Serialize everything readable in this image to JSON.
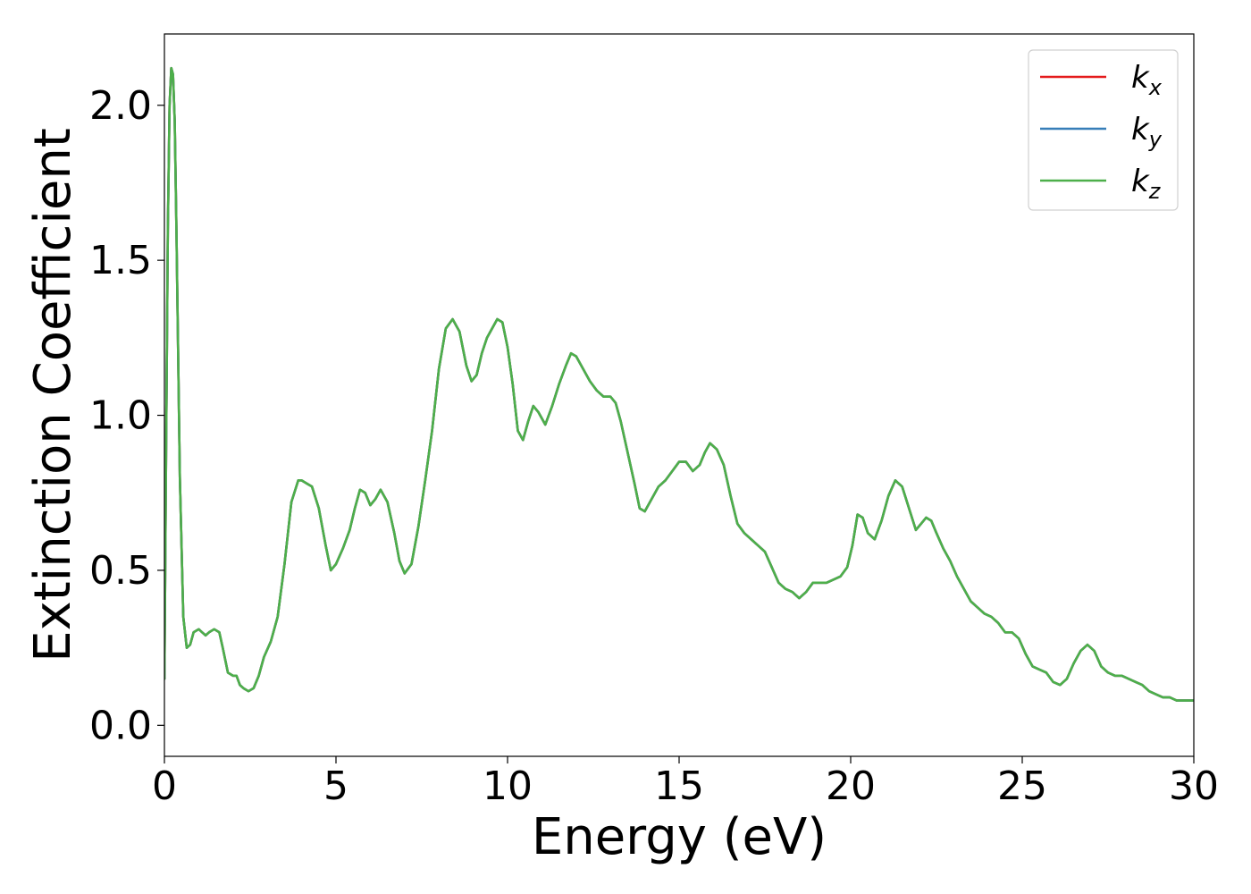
{
  "chart_data": {
    "type": "line",
    "xlabel": "Energy (eV)",
    "ylabel": "Extinction Coefficient",
    "xlim": [
      0,
      30
    ],
    "ylim": [
      -0.1,
      2.23
    ],
    "xticks": [
      0,
      5,
      10,
      15,
      20,
      25,
      30
    ],
    "yticks": [
      0.0,
      0.5,
      1.0,
      1.5,
      2.0
    ],
    "xtick_labels": [
      "0",
      "5",
      "10",
      "15",
      "20",
      "25",
      "30"
    ],
    "ytick_labels": [
      "0.0",
      "0.5",
      "1.0",
      "1.5",
      "2.0"
    ],
    "grid": false,
    "legend_position": "top-right",
    "series": [
      {
        "name": "k_x",
        "label_main": "k",
        "label_sub": "x",
        "color": "#e41a1c",
        "x": [
          0.0,
          0.05,
          0.1,
          0.15,
          0.2,
          0.25,
          0.3,
          0.35,
          0.45,
          0.55,
          0.65,
          0.75,
          0.85,
          1.0,
          1.1,
          1.2,
          1.3,
          1.45,
          1.6,
          1.7,
          1.85,
          2.0,
          2.1,
          2.2,
          2.3,
          2.45,
          2.6,
          2.75,
          2.9,
          3.1,
          3.3,
          3.5,
          3.7,
          3.9,
          4.0,
          4.15,
          4.3,
          4.5,
          4.7,
          4.85,
          5.0,
          5.2,
          5.4,
          5.55,
          5.7,
          5.85,
          6.0,
          6.15,
          6.3,
          6.5,
          6.7,
          6.85,
          7.0,
          7.2,
          7.4,
          7.6,
          7.8,
          8.0,
          8.2,
          8.4,
          8.6,
          8.8,
          8.95,
          9.1,
          9.25,
          9.4,
          9.55,
          9.7,
          9.85,
          10.0,
          10.15,
          10.3,
          10.45,
          10.6,
          10.75,
          10.9,
          11.1,
          11.3,
          11.5,
          11.7,
          11.85,
          12.0,
          12.2,
          12.4,
          12.6,
          12.8,
          13.0,
          13.15,
          13.3,
          13.5,
          13.7,
          13.85,
          14.0,
          14.2,
          14.4,
          14.6,
          14.8,
          15.0,
          15.2,
          15.4,
          15.6,
          15.75,
          15.9,
          16.1,
          16.3,
          16.5,
          16.7,
          16.9,
          17.1,
          17.3,
          17.5,
          17.7,
          17.9,
          18.1,
          18.3,
          18.5,
          18.7,
          18.9,
          19.1,
          19.3,
          19.5,
          19.7,
          19.9,
          20.05,
          20.2,
          20.35,
          20.5,
          20.7,
          20.9,
          21.1,
          21.3,
          21.5,
          21.7,
          21.9,
          22.05,
          22.2,
          22.35,
          22.5,
          22.7,
          22.9,
          23.1,
          23.3,
          23.5,
          23.7,
          23.9,
          24.1,
          24.3,
          24.5,
          24.7,
          24.9,
          25.1,
          25.3,
          25.5,
          25.7,
          25.9,
          26.1,
          26.3,
          26.5,
          26.7,
          26.9,
          27.1,
          27.3,
          27.5,
          27.7,
          27.9,
          28.1,
          28.3,
          28.5,
          28.7,
          28.9,
          29.1,
          29.3,
          29.5,
          29.7,
          30.0
        ],
        "y": [
          0.15,
          0.9,
          1.6,
          2.0,
          2.12,
          2.1,
          1.95,
          1.6,
          0.8,
          0.35,
          0.25,
          0.26,
          0.3,
          0.31,
          0.3,
          0.29,
          0.3,
          0.31,
          0.3,
          0.25,
          0.17,
          0.16,
          0.16,
          0.13,
          0.12,
          0.11,
          0.12,
          0.16,
          0.22,
          0.27,
          0.35,
          0.52,
          0.72,
          0.79,
          0.79,
          0.78,
          0.77,
          0.7,
          0.58,
          0.5,
          0.52,
          0.57,
          0.63,
          0.7,
          0.76,
          0.75,
          0.71,
          0.73,
          0.76,
          0.72,
          0.62,
          0.53,
          0.49,
          0.52,
          0.64,
          0.79,
          0.95,
          1.15,
          1.28,
          1.31,
          1.27,
          1.16,
          1.11,
          1.13,
          1.2,
          1.25,
          1.28,
          1.31,
          1.3,
          1.22,
          1.1,
          0.95,
          0.92,
          0.98,
          1.03,
          1.01,
          0.97,
          1.03,
          1.1,
          1.16,
          1.2,
          1.19,
          1.15,
          1.11,
          1.08,
          1.06,
          1.06,
          1.04,
          0.98,
          0.88,
          0.78,
          0.7,
          0.69,
          0.73,
          0.77,
          0.79,
          0.82,
          0.85,
          0.85,
          0.82,
          0.84,
          0.88,
          0.91,
          0.89,
          0.84,
          0.74,
          0.65,
          0.62,
          0.6,
          0.58,
          0.56,
          0.51,
          0.46,
          0.44,
          0.43,
          0.41,
          0.43,
          0.46,
          0.46,
          0.46,
          0.47,
          0.48,
          0.51,
          0.58,
          0.68,
          0.67,
          0.62,
          0.6,
          0.66,
          0.74,
          0.79,
          0.77,
          0.7,
          0.63,
          0.65,
          0.67,
          0.66,
          0.62,
          0.57,
          0.53,
          0.48,
          0.44,
          0.4,
          0.38,
          0.36,
          0.35,
          0.33,
          0.3,
          0.3,
          0.28,
          0.23,
          0.19,
          0.18,
          0.17,
          0.14,
          0.13,
          0.15,
          0.2,
          0.24,
          0.26,
          0.24,
          0.19,
          0.17,
          0.16,
          0.16,
          0.15,
          0.14,
          0.13,
          0.11,
          0.1,
          0.09,
          0.09,
          0.08,
          0.08,
          0.08
        ]
      },
      {
        "name": "k_y",
        "label_main": "k",
        "label_sub": "y",
        "color": "#377eb8",
        "x": [
          0.0,
          0.05,
          0.1,
          0.15,
          0.2,
          0.25,
          0.3,
          0.35,
          0.45,
          0.55,
          0.65,
          0.75,
          0.85,
          1.0,
          1.1,
          1.2,
          1.3,
          1.45,
          1.6,
          1.7,
          1.85,
          2.0,
          2.1,
          2.2,
          2.3,
          2.45,
          2.6,
          2.75,
          2.9,
          3.1,
          3.3,
          3.5,
          3.7,
          3.9,
          4.0,
          4.15,
          4.3,
          4.5,
          4.7,
          4.85,
          5.0,
          5.2,
          5.4,
          5.55,
          5.7,
          5.85,
          6.0,
          6.15,
          6.3,
          6.5,
          6.7,
          6.85,
          7.0,
          7.2,
          7.4,
          7.6,
          7.8,
          8.0,
          8.2,
          8.4,
          8.6,
          8.8,
          8.95,
          9.1,
          9.25,
          9.4,
          9.55,
          9.7,
          9.85,
          10.0,
          10.15,
          10.3,
          10.45,
          10.6,
          10.75,
          10.9,
          11.1,
          11.3,
          11.5,
          11.7,
          11.85,
          12.0,
          12.2,
          12.4,
          12.6,
          12.8,
          13.0,
          13.15,
          13.3,
          13.5,
          13.7,
          13.85,
          14.0,
          14.2,
          14.4,
          14.6,
          14.8,
          15.0,
          15.2,
          15.4,
          15.6,
          15.75,
          15.9,
          16.1,
          16.3,
          16.5,
          16.7,
          16.9,
          17.1,
          17.3,
          17.5,
          17.7,
          17.9,
          18.1,
          18.3,
          18.5,
          18.7,
          18.9,
          19.1,
          19.3,
          19.5,
          19.7,
          19.9,
          20.05,
          20.2,
          20.35,
          20.5,
          20.7,
          20.9,
          21.1,
          21.3,
          21.5,
          21.7,
          21.9,
          22.05,
          22.2,
          22.35,
          22.5,
          22.7,
          22.9,
          23.1,
          23.3,
          23.5,
          23.7,
          23.9,
          24.1,
          24.3,
          24.5,
          24.7,
          24.9,
          25.1,
          25.3,
          25.5,
          25.7,
          25.9,
          26.1,
          26.3,
          26.5,
          26.7,
          26.9,
          27.1,
          27.3,
          27.5,
          27.7,
          27.9,
          28.1,
          28.3,
          28.5,
          28.7,
          28.9,
          29.1,
          29.3,
          29.5,
          29.7,
          30.0
        ],
        "y": [
          0.15,
          0.9,
          1.6,
          2.0,
          2.12,
          2.1,
          1.95,
          1.6,
          0.8,
          0.35,
          0.25,
          0.26,
          0.3,
          0.31,
          0.3,
          0.29,
          0.3,
          0.31,
          0.3,
          0.25,
          0.17,
          0.16,
          0.16,
          0.13,
          0.12,
          0.11,
          0.12,
          0.16,
          0.22,
          0.27,
          0.35,
          0.52,
          0.72,
          0.79,
          0.79,
          0.78,
          0.77,
          0.7,
          0.58,
          0.5,
          0.52,
          0.57,
          0.63,
          0.7,
          0.76,
          0.75,
          0.71,
          0.73,
          0.76,
          0.72,
          0.62,
          0.53,
          0.49,
          0.52,
          0.64,
          0.79,
          0.95,
          1.15,
          1.28,
          1.31,
          1.27,
          1.16,
          1.11,
          1.13,
          1.2,
          1.25,
          1.28,
          1.31,
          1.3,
          1.22,
          1.1,
          0.95,
          0.92,
          0.98,
          1.03,
          1.01,
          0.97,
          1.03,
          1.1,
          1.16,
          1.2,
          1.19,
          1.15,
          1.11,
          1.08,
          1.06,
          1.06,
          1.04,
          0.98,
          0.88,
          0.78,
          0.7,
          0.69,
          0.73,
          0.77,
          0.79,
          0.82,
          0.85,
          0.85,
          0.82,
          0.84,
          0.88,
          0.91,
          0.89,
          0.84,
          0.74,
          0.65,
          0.62,
          0.6,
          0.58,
          0.56,
          0.51,
          0.46,
          0.44,
          0.43,
          0.41,
          0.43,
          0.46,
          0.46,
          0.46,
          0.47,
          0.48,
          0.51,
          0.58,
          0.68,
          0.67,
          0.62,
          0.6,
          0.66,
          0.74,
          0.79,
          0.77,
          0.7,
          0.63,
          0.65,
          0.67,
          0.66,
          0.62,
          0.57,
          0.53,
          0.48,
          0.44,
          0.4,
          0.38,
          0.36,
          0.35,
          0.33,
          0.3,
          0.3,
          0.28,
          0.23,
          0.19,
          0.18,
          0.17,
          0.14,
          0.13,
          0.15,
          0.2,
          0.24,
          0.26,
          0.24,
          0.19,
          0.17,
          0.16,
          0.16,
          0.15,
          0.14,
          0.13,
          0.11,
          0.1,
          0.09,
          0.09,
          0.08,
          0.08,
          0.08
        ]
      },
      {
        "name": "k_z",
        "label_main": "k",
        "label_sub": "z",
        "color": "#4daf4a",
        "x": [
          0.0,
          0.05,
          0.1,
          0.15,
          0.2,
          0.25,
          0.3,
          0.35,
          0.45,
          0.55,
          0.65,
          0.75,
          0.85,
          1.0,
          1.1,
          1.2,
          1.3,
          1.45,
          1.6,
          1.7,
          1.85,
          2.0,
          2.1,
          2.2,
          2.3,
          2.45,
          2.6,
          2.75,
          2.9,
          3.1,
          3.3,
          3.5,
          3.7,
          3.9,
          4.0,
          4.15,
          4.3,
          4.5,
          4.7,
          4.85,
          5.0,
          5.2,
          5.4,
          5.55,
          5.7,
          5.85,
          6.0,
          6.15,
          6.3,
          6.5,
          6.7,
          6.85,
          7.0,
          7.2,
          7.4,
          7.6,
          7.8,
          8.0,
          8.2,
          8.4,
          8.6,
          8.8,
          8.95,
          9.1,
          9.25,
          9.4,
          9.55,
          9.7,
          9.85,
          10.0,
          10.15,
          10.3,
          10.45,
          10.6,
          10.75,
          10.9,
          11.1,
          11.3,
          11.5,
          11.7,
          11.85,
          12.0,
          12.2,
          12.4,
          12.6,
          12.8,
          13.0,
          13.15,
          13.3,
          13.5,
          13.7,
          13.85,
          14.0,
          14.2,
          14.4,
          14.6,
          14.8,
          15.0,
          15.2,
          15.4,
          15.6,
          15.75,
          15.9,
          16.1,
          16.3,
          16.5,
          16.7,
          16.9,
          17.1,
          17.3,
          17.5,
          17.7,
          17.9,
          18.1,
          18.3,
          18.5,
          18.7,
          18.9,
          19.1,
          19.3,
          19.5,
          19.7,
          19.9,
          20.05,
          20.2,
          20.35,
          20.5,
          20.7,
          20.9,
          21.1,
          21.3,
          21.5,
          21.7,
          21.9,
          22.05,
          22.2,
          22.35,
          22.5,
          22.7,
          22.9,
          23.1,
          23.3,
          23.5,
          23.7,
          23.9,
          24.1,
          24.3,
          24.5,
          24.7,
          24.9,
          25.1,
          25.3,
          25.5,
          25.7,
          25.9,
          26.1,
          26.3,
          26.5,
          26.7,
          26.9,
          27.1,
          27.3,
          27.5,
          27.7,
          27.9,
          28.1,
          28.3,
          28.5,
          28.7,
          28.9,
          29.1,
          29.3,
          29.5,
          29.7,
          30.0
        ],
        "y": [
          0.15,
          0.9,
          1.6,
          2.0,
          2.12,
          2.1,
          1.95,
          1.6,
          0.8,
          0.35,
          0.25,
          0.26,
          0.3,
          0.31,
          0.3,
          0.29,
          0.3,
          0.31,
          0.3,
          0.25,
          0.17,
          0.16,
          0.16,
          0.13,
          0.12,
          0.11,
          0.12,
          0.16,
          0.22,
          0.27,
          0.35,
          0.52,
          0.72,
          0.79,
          0.79,
          0.78,
          0.77,
          0.7,
          0.58,
          0.5,
          0.52,
          0.57,
          0.63,
          0.7,
          0.76,
          0.75,
          0.71,
          0.73,
          0.76,
          0.72,
          0.62,
          0.53,
          0.49,
          0.52,
          0.64,
          0.79,
          0.95,
          1.15,
          1.28,
          1.31,
          1.27,
          1.16,
          1.11,
          1.13,
          1.2,
          1.25,
          1.28,
          1.31,
          1.3,
          1.22,
          1.1,
          0.95,
          0.92,
          0.98,
          1.03,
          1.01,
          0.97,
          1.03,
          1.1,
          1.16,
          1.2,
          1.19,
          1.15,
          1.11,
          1.08,
          1.06,
          1.06,
          1.04,
          0.98,
          0.88,
          0.78,
          0.7,
          0.69,
          0.73,
          0.77,
          0.79,
          0.82,
          0.85,
          0.85,
          0.82,
          0.84,
          0.88,
          0.91,
          0.89,
          0.84,
          0.74,
          0.65,
          0.62,
          0.6,
          0.58,
          0.56,
          0.51,
          0.46,
          0.44,
          0.43,
          0.41,
          0.43,
          0.46,
          0.46,
          0.46,
          0.47,
          0.48,
          0.51,
          0.58,
          0.68,
          0.67,
          0.62,
          0.6,
          0.66,
          0.74,
          0.79,
          0.77,
          0.7,
          0.63,
          0.65,
          0.67,
          0.66,
          0.62,
          0.57,
          0.53,
          0.48,
          0.44,
          0.4,
          0.38,
          0.36,
          0.35,
          0.33,
          0.3,
          0.3,
          0.28,
          0.23,
          0.19,
          0.18,
          0.17,
          0.14,
          0.13,
          0.15,
          0.2,
          0.24,
          0.26,
          0.24,
          0.19,
          0.17,
          0.16,
          0.16,
          0.15,
          0.14,
          0.13,
          0.11,
          0.1,
          0.09,
          0.09,
          0.08,
          0.08,
          0.08
        ]
      }
    ]
  }
}
